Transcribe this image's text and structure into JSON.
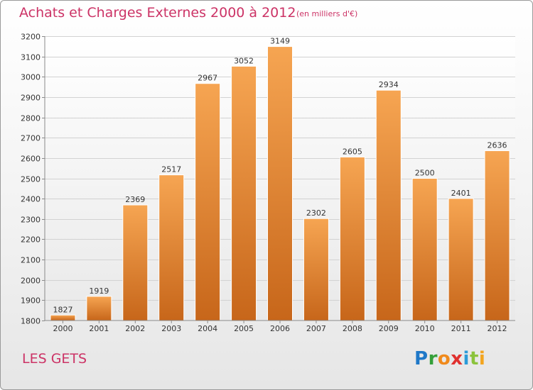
{
  "header": {
    "title": "Achats et Charges Externes 2000 à 2012",
    "subtitle": "(en milliers d'€)"
  },
  "footer": {
    "commune": "LES GETS",
    "logo": {
      "text": "Proxiti",
      "letters": [
        {
          "char": "P",
          "color": "#1f78c8"
        },
        {
          "char": "r",
          "color": "#35a03a"
        },
        {
          "char": "o",
          "color": "#f08a1c"
        },
        {
          "char": "x",
          "color": "#e0312f"
        },
        {
          "char": "i",
          "color": "#2b9bd8"
        },
        {
          "char": "t",
          "color": "#8bc33c"
        },
        {
          "char": "i",
          "color": "#f3a51f"
        }
      ]
    }
  },
  "colors": {
    "bar_light": "#f6a552",
    "bar_dark": "#c7661a",
    "title": "#cc3366",
    "grid": "#d2d2d2"
  },
  "chart_data": {
    "type": "bar",
    "title": "Achats et Charges Externes 2000 à 2012",
    "unit": "(en milliers d'€)",
    "categories": [
      "2000",
      "2001",
      "2002",
      "2003",
      "2004",
      "2005",
      "2006",
      "2007",
      "2008",
      "2009",
      "2010",
      "2011",
      "2012"
    ],
    "values": [
      1827,
      1919,
      2369,
      2517,
      2967,
      3052,
      3149,
      2302,
      2605,
      2934,
      2500,
      2401,
      2636
    ],
    "ylim": [
      1800,
      3200
    ],
    "yticks": [
      1800,
      1900,
      2000,
      2100,
      2200,
      2300,
      2400,
      2500,
      2600,
      2700,
      2800,
      2900,
      3000,
      3100,
      3200
    ],
    "grid": true,
    "xlabel": "",
    "ylabel": ""
  }
}
